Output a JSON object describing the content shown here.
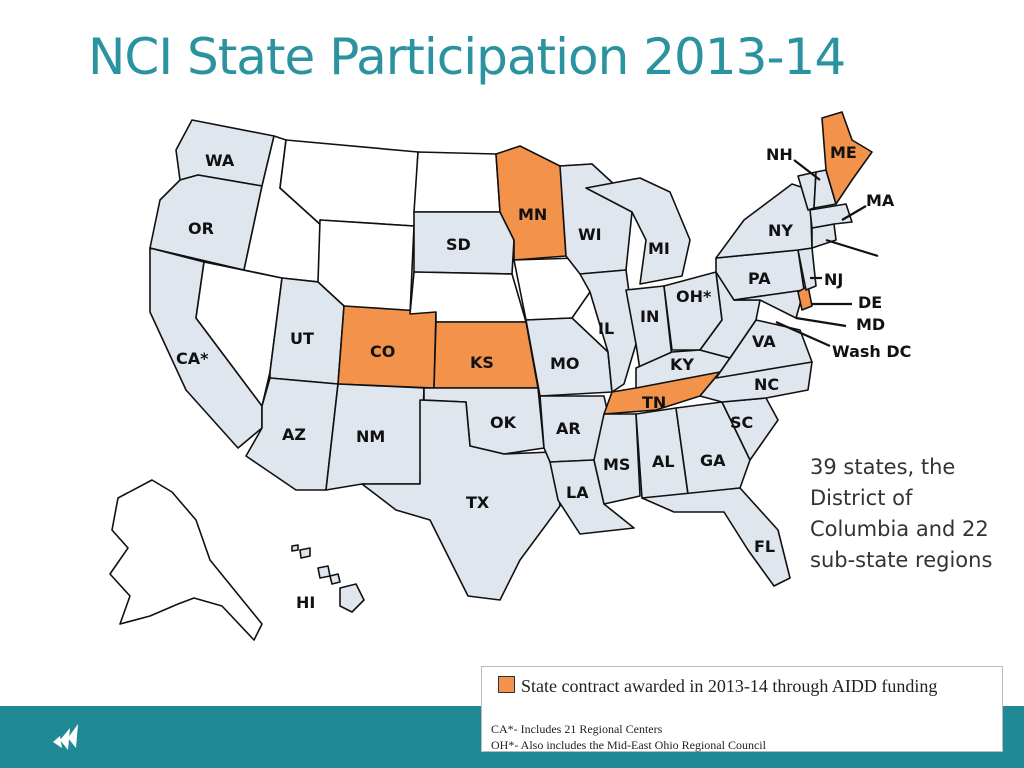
{
  "title": "NCI State Participation 2013-14",
  "colors": {
    "participating": "#dfe6ee",
    "aidd_contract": "#f3934b",
    "non_participating": "#ffffff",
    "title": "#2b93a0",
    "footer": "#1f8a96"
  },
  "map": {
    "state_labels": {
      "WA": "WA",
      "OR": "OR",
      "CA": "CA*",
      "NV": "",
      "ID": "",
      "MT": "",
      "WY": "",
      "UT": "UT",
      "AZ": "AZ",
      "CO": "CO",
      "NM": "NM",
      "ND": "",
      "SD": "SD",
      "NE": "",
      "KS": "KS",
      "OK": "OK",
      "TX": "TX",
      "MN": "MN",
      "IA": "",
      "MO": "MO",
      "AR": "AR",
      "LA": "LA",
      "WI": "WI",
      "IL": "IL",
      "MS": "MS",
      "MI": "MI",
      "IN": "IN",
      "KY": "KY",
      "TN": "TN",
      "AL": "AL",
      "OH": "OH*",
      "GA": "GA",
      "FL": "FL",
      "SC": "SC",
      "NC": "NC",
      "VA": "VA",
      "WV": "",
      "PA": "PA",
      "NY": "NY",
      "ME": "ME",
      "HI": "HI",
      "AK": ""
    },
    "callouts": {
      "NH": "NH",
      "MA": "MA",
      "NJ": "NJ",
      "DE": "DE",
      "MD": "MD",
      "DC": "Wash DC"
    },
    "status": {
      "aidd_contract": [
        "MN",
        "CO",
        "KS",
        "TN",
        "ME",
        "DE"
      ],
      "non_participating": [
        "MT",
        "ID",
        "NV",
        "WY",
        "ND",
        "NE",
        "IA",
        "AK"
      ]
    }
  },
  "note": "39 states, the District of Columbia and 22 sub-state regions",
  "legend": {
    "main": "State contract awarded in 2013-14 through AIDD funding",
    "foot1": "CA*- Includes 21 Regional Centers",
    "foot2": "OH*- Also includes the Mid-East Ohio Regional Council"
  }
}
